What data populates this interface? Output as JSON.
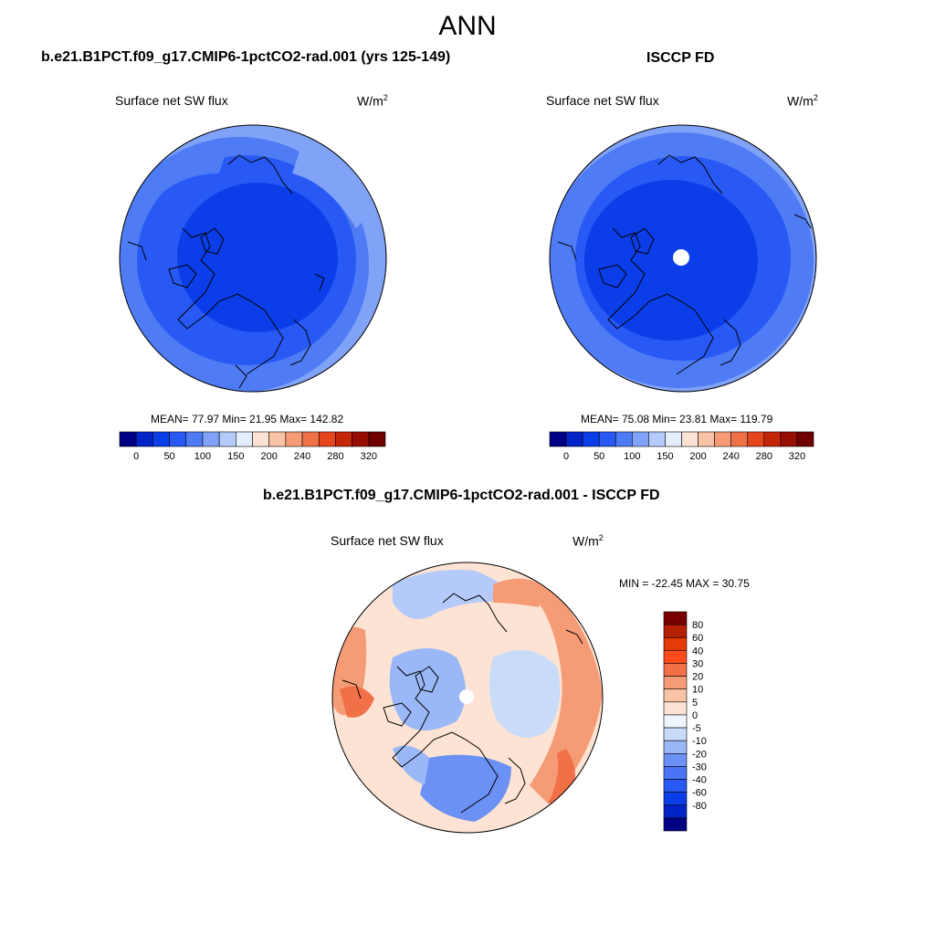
{
  "page_title": "ANN",
  "colors": {
    "seq": [
      "#000085",
      "#0024c7",
      "#0b3ee8",
      "#2859f5",
      "#4f7cf5",
      "#80a3f7",
      "#b3cafa",
      "#e2eefb",
      "#fde3d3",
      "#f9c3a5",
      "#f59c77",
      "#ef7148",
      "#e6451d",
      "#c52509",
      "#970e03",
      "#6e0000"
    ],
    "div": [
      "#000085",
      "#0024c7",
      "#0b3ee8",
      "#2859f5",
      "#4a74f3",
      "#6b91f4",
      "#9ab8f8",
      "#c8dcfa",
      "#eef5fd",
      "#fde3d3",
      "#f9c3a5",
      "#f59c77",
      "#f27047",
      "#ff4b1c",
      "#e63b08",
      "#b52100",
      "#7a0000"
    ],
    "coast": "#000000"
  },
  "panels": [
    {
      "id": "model",
      "title": "b.e21.B1PCT.f09_g17.CMIP6-1pctCO2-rad.001 (yrs 125-149)",
      "subtitle_left": "Surface net SW flux",
      "units": "W/m",
      "units_sup": "2",
      "stats": "MEAN=  77.97  Min=  21.95  Max= 142.82"
    },
    {
      "id": "obs",
      "title": "ISCCP FD",
      "subtitle_left": "Surface net SW flux",
      "units": "W/m",
      "units_sup": "2",
      "stats": "MEAN=  75.08  Min=  23.81  Max= 119.79"
    },
    {
      "id": "diff",
      "title": "b.e21.B1PCT.f09_g17.CMIP6-1pctCO2-rad.001 - ISCCP FD",
      "subtitle_left": "Surface net SW flux",
      "units": "W/m",
      "units_sup": "2",
      "stats": "MIN = -22.45 MAX =  30.75"
    }
  ],
  "chart_data": [
    {
      "type": "heatmap",
      "projection": "north-polar-stereographic",
      "title": "b.e21.B1PCT.f09_g17.CMIP6-1pctCO2-rad.001 (yrs 125-149)",
      "variable": "Surface net SW flux",
      "units": "W/m2",
      "mean": 77.97,
      "min": 21.95,
      "max": 142.82,
      "colorbar_levels": [
        0,
        25,
        50,
        75,
        100,
        125,
        150,
        175,
        200,
        220,
        240,
        260,
        280,
        300,
        320
      ],
      "colorbar_tick_labels": [
        "0",
        "50",
        "100",
        "150",
        "200",
        "240",
        "280",
        "320"
      ]
    },
    {
      "type": "heatmap",
      "projection": "north-polar-stereographic",
      "title": "ISCCP FD",
      "variable": "Surface net SW flux",
      "units": "W/m2",
      "mean": 75.08,
      "min": 23.81,
      "max": 119.79,
      "colorbar_levels": [
        0,
        25,
        50,
        75,
        100,
        125,
        150,
        175,
        200,
        220,
        240,
        260,
        280,
        300,
        320
      ],
      "colorbar_tick_labels": [
        "0",
        "50",
        "100",
        "150",
        "200",
        "240",
        "280",
        "320"
      ]
    },
    {
      "type": "heatmap",
      "projection": "north-polar-stereographic",
      "title": "b.e21.B1PCT.f09_g17.CMIP6-1pctCO2-rad.001 - ISCCP FD",
      "variable": "Surface net SW flux",
      "units": "W/m2",
      "min": -22.45,
      "max": 30.75,
      "colorbar_levels": [
        80,
        60,
        40,
        30,
        20,
        10,
        5,
        0,
        -5,
        -10,
        -20,
        -30,
        -40,
        -60,
        -80
      ],
      "colorbar_tick_labels": [
        "80",
        "60",
        "40",
        "30",
        "20",
        "10",
        "5",
        "0",
        "-5",
        "-10",
        "-20",
        "-30",
        "-40",
        "-60",
        "-80"
      ]
    }
  ]
}
